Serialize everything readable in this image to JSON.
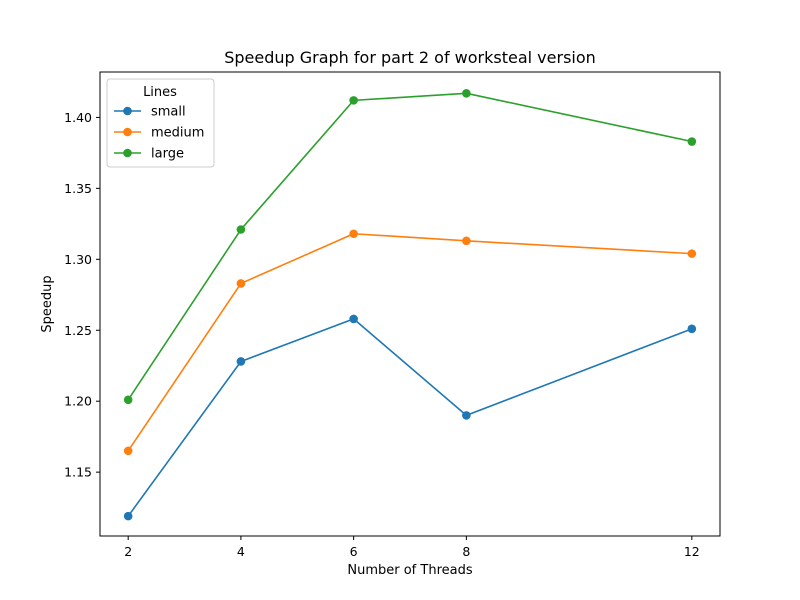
{
  "chart_data": {
    "type": "line",
    "title": "Speedup Graph for part 2 of worksteal version",
    "xlabel": "Number of Threads",
    "ylabel": "Speedup",
    "x": [
      2,
      4,
      6,
      8,
      12
    ],
    "xticks": [
      "2",
      "4",
      "6",
      "8",
      "12"
    ],
    "xlim": [
      1.5,
      12.5
    ],
    "ylim": [
      1.105,
      1.432
    ],
    "yticks": [
      "1.15",
      "1.20",
      "1.25",
      "1.30",
      "1.35",
      "1.40"
    ],
    "ytick_values": [
      1.15,
      1.2,
      1.25,
      1.3,
      1.35,
      1.4
    ],
    "grid": false,
    "legend": {
      "title": "Lines",
      "placement": "top-left"
    },
    "series": [
      {
        "name": "small",
        "color": "#1f77b4",
        "values": [
          1.119,
          1.228,
          1.258,
          1.19,
          1.251
        ]
      },
      {
        "name": "medium",
        "color": "#ff7f0e",
        "values": [
          1.165,
          1.283,
          1.318,
          1.313,
          1.304
        ]
      },
      {
        "name": "large",
        "color": "#2ca02c",
        "values": [
          1.201,
          1.321,
          1.412,
          1.417,
          1.383
        ]
      }
    ]
  }
}
